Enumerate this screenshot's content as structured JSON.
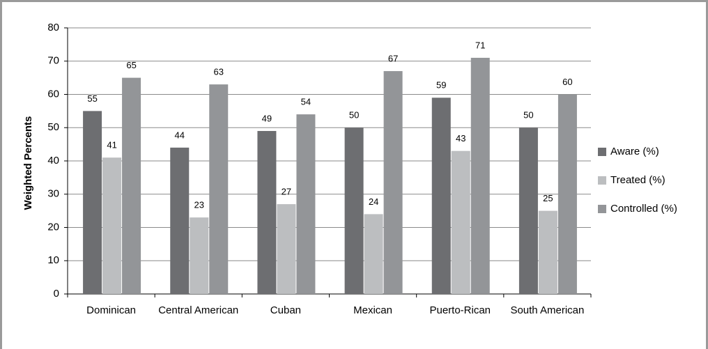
{
  "chart_data": {
    "type": "bar",
    "y_label": "Weighted Percents",
    "categories": [
      "Dominican",
      "Central American",
      "Cuban",
      "Mexican",
      "Puerto-Rican",
      "South American"
    ],
    "series": [
      {
        "name": "Aware (%)",
        "color": "#6d6e71",
        "values": [
          55,
          44,
          49,
          50,
          59,
          50
        ]
      },
      {
        "name": "Treated (%)",
        "color": "#bcbec0",
        "values": [
          41,
          23,
          27,
          24,
          43,
          25
        ]
      },
      {
        "name": "Controlled (%)",
        "color": "#939598",
        "values": [
          65,
          63,
          54,
          67,
          71,
          60
        ]
      }
    ],
    "ylim": [
      0,
      80
    ],
    "yticks": [
      0,
      10,
      20,
      30,
      40,
      50,
      60,
      70,
      80
    ],
    "grid": true,
    "legend": "right"
  }
}
